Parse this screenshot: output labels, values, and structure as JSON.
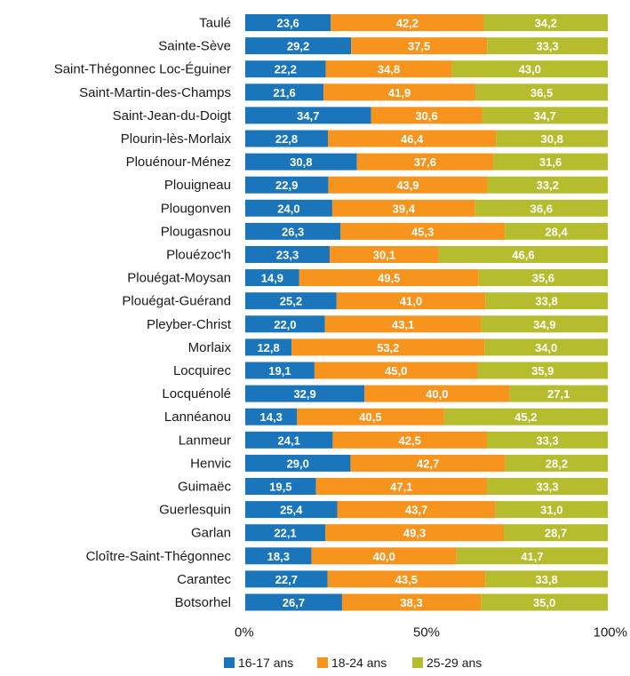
{
  "chart_data": {
    "type": "bar",
    "orientation": "horizontal",
    "stacked": "percent",
    "categories": [
      "Taulé",
      "Sainte-Sève",
      "Saint-Thégonnec Loc-Éguiner",
      "Saint-Martin-des-Champs",
      "Saint-Jean-du-Doigt",
      "Plourin-lès-Morlaix",
      "Plouénour-Ménez",
      "Plouigneau",
      "Plougonven",
      "Plougasnou",
      "Plouézoc'h",
      "Plouégat-Moysan",
      "Plouégat-Guérand",
      "Pleyber-Christ",
      "Morlaix",
      "Locquirec",
      "Locquénolé",
      "Lannéanou",
      "Lanmeur",
      "Henvic",
      "Guimaëc",
      "Guerlesquin",
      "Garlan",
      "Cloître-Saint-Thégonnec",
      "Carantec",
      "Botsorhel"
    ],
    "series": [
      {
        "name": "16-17 ans",
        "color": "#1b75bb",
        "values": [
          23.6,
          29.2,
          22.2,
          21.6,
          34.7,
          22.8,
          30.8,
          22.9,
          24.0,
          26.3,
          23.3,
          14.9,
          25.2,
          22.0,
          12.8,
          19.1,
          32.9,
          14.3,
          24.1,
          29.0,
          19.5,
          25.4,
          22.1,
          18.3,
          22.7,
          26.7
        ],
        "labels": [
          "23,6",
          "29,2",
          "22,2",
          "21,6",
          "34,7",
          "22,8",
          "30,8",
          "22,9",
          "24,0",
          "26,3",
          "23,3",
          "14,9",
          "25,2",
          "22,0",
          "12,8",
          "19,1",
          "32,9",
          "14,3",
          "24,1",
          "29,0",
          "19,5",
          "25,4",
          "22,1",
          "18,3",
          "22,7",
          "26,7"
        ]
      },
      {
        "name": "18-24 ans",
        "color": "#f7941d",
        "values": [
          42.2,
          37.5,
          34.8,
          41.9,
          30.6,
          46.4,
          37.6,
          43.9,
          39.4,
          45.3,
          30.1,
          49.5,
          41.0,
          43.1,
          53.2,
          45.0,
          40.0,
          40.5,
          42.5,
          42.7,
          47.1,
          43.7,
          49.3,
          40.0,
          43.5,
          38.3
        ],
        "labels": [
          "42,2",
          "37,5",
          "34,8",
          "41,9",
          "30,6",
          "46,4",
          "37,6",
          "43,9",
          "39,4",
          "45,3",
          "30,1",
          "49,5",
          "41,0",
          "43,1",
          "53,2",
          "45,0",
          "40,0",
          "40,5",
          "42,5",
          "42,7",
          "47,1",
          "43,7",
          "49,3",
          "40,0",
          "43,5",
          "38,3"
        ]
      },
      {
        "name": "25-29 ans",
        "color": "#b5bd2e",
        "values": [
          34.2,
          33.3,
          43.0,
          36.5,
          34.7,
          30.8,
          31.6,
          33.2,
          36.6,
          28.4,
          46.6,
          35.6,
          33.8,
          34.9,
          34.0,
          35.9,
          27.1,
          45.2,
          33.3,
          28.2,
          33.3,
          31.0,
          28.7,
          41.7,
          33.8,
          35.0
        ],
        "labels": [
          "34,2",
          "33,3",
          "43,0",
          "36,5",
          "34,7",
          "30,8",
          "31,6",
          "33,2",
          "36,6",
          "28,4",
          "46,6",
          "35,6",
          "33,8",
          "34,9",
          "34,0",
          "35,9",
          "27,1",
          "45,2",
          "33,3",
          "28,2",
          "33,3",
          "31,0",
          "28,7",
          "41,7",
          "33,8",
          "35,0"
        ]
      }
    ],
    "x_ticks": [
      "0%",
      "50%",
      "100%"
    ],
    "xlim": [
      0,
      100
    ],
    "legend": "bottom",
    "grid": false
  }
}
